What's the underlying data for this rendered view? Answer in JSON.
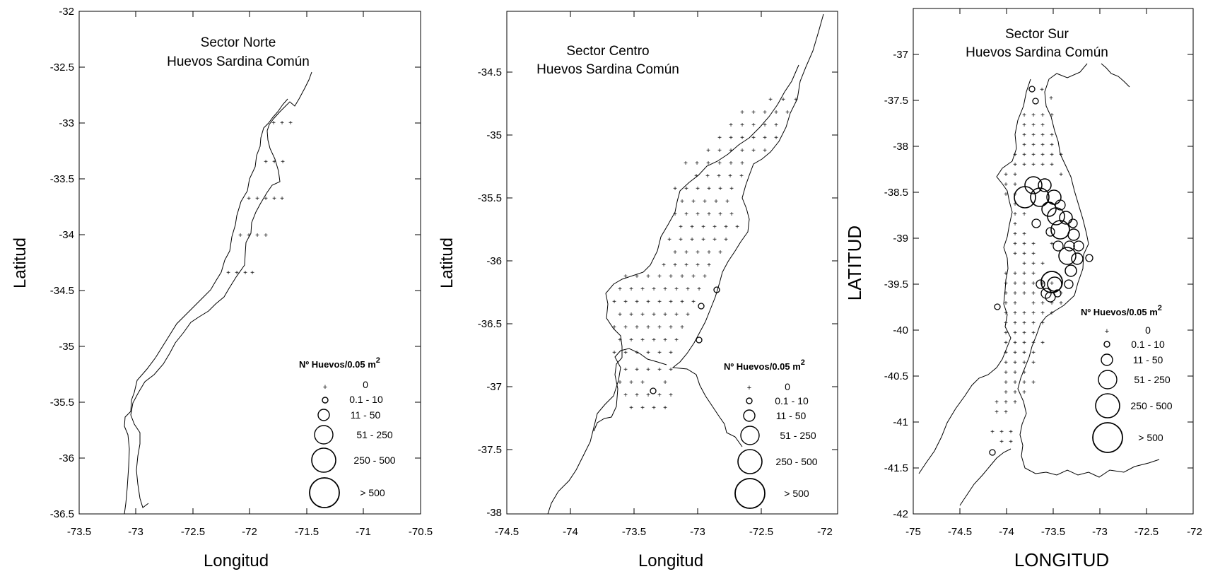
{
  "panels": [
    {
      "title_line1": "Sector Norte",
      "title_line2": "Huevos Sardina Común",
      "xlabel": "Longitud",
      "ylabel": "Latitud",
      "xlim": [
        -73.5,
        -70.5
      ],
      "ylim": [
        -36.5,
        -32
      ],
      "xticks": [
        "-73.5",
        "-73",
        "-72.5",
        "-72",
        "-71.5",
        "-71",
        "-70.5"
      ],
      "yticks": [
        "-32",
        "-32.5",
        "-33",
        "-33.5",
        "-34",
        "-34.5",
        "-35",
        "-35.5",
        "-36",
        "-36.5"
      ],
      "legend": {
        "title": "Nº Huevos/0.05 m",
        "title_superscript": "2",
        "classes": [
          "0",
          "0.1 - 10",
          "11 - 50",
          "51 - 250",
          "250 - 500",
          "> 500"
        ]
      }
    },
    {
      "title_line1": "Sector Centro",
      "title_line2": "Huevos Sardina Común",
      "xlabel": "Longitud",
      "ylabel": "Latitud",
      "xlim": [
        -74.5,
        -72
      ],
      "ylim": [
        -38,
        -34
      ],
      "xticks": [
        "-74.5",
        "-74",
        "-73.5",
        "-73",
        "-72.5",
        "-72"
      ],
      "yticks": [
        "-34.5",
        "-35",
        "-35.5",
        "-36",
        "-36.5",
        "-37",
        "-37.5",
        "-38"
      ],
      "legend": {
        "title": "Nº Huevos/0.05 m",
        "title_superscript": "2",
        "classes": [
          "0",
          "0.1 - 10",
          "11 - 50",
          "51 - 250",
          "250 - 500",
          "> 500"
        ]
      }
    },
    {
      "title_line1": "Sector Sur",
      "title_line2": "Huevos Sardina Común",
      "xlabel": "LONGITUD",
      "ylabel": "LATITUD",
      "xlim": [
        -75,
        -72
      ],
      "ylim": [
        -42,
        -36.5
      ],
      "xticks": [
        "-75",
        "-74.5",
        "-74",
        "-73.5",
        "-73",
        "-72.5",
        "-72"
      ],
      "yticks": [
        "-37",
        "-37.5",
        "-38",
        "-38.5",
        "-39",
        "-39.5",
        "-40",
        "-40.5",
        "-41",
        "-41.5",
        "-42"
      ],
      "legend": {
        "title": "Nº Huevos/0.05 m",
        "title_superscript": "2",
        "classes": [
          "0",
          "0.1 - 10",
          "11 - 50",
          "51 - 250",
          "250 - 500",
          "> 500"
        ]
      }
    }
  ]
}
